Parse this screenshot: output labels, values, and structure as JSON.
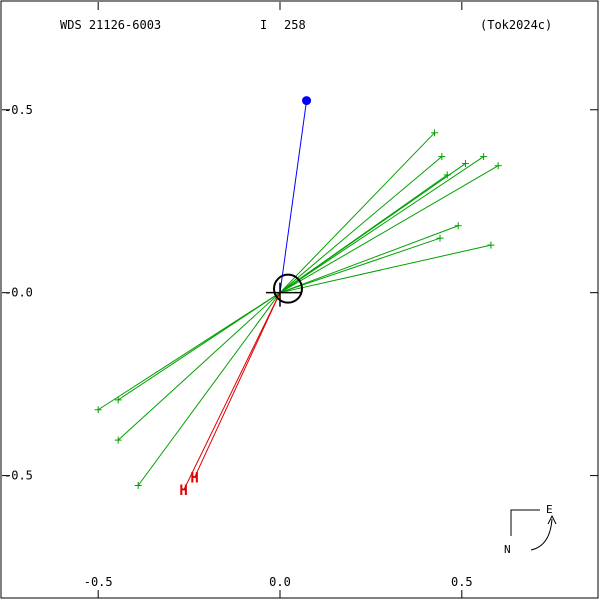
{
  "header": {
    "system": "WDS 21126-6003",
    "band": "I",
    "position_angle": "258",
    "reference": "(Tok2024c)"
  },
  "chart_data": {
    "type": "scatter",
    "title": "WDS 21126-6003",
    "xlim": [
      -0.77,
      0.88
    ],
    "ylim": [
      -0.84,
      0.8
    ],
    "x_ticks": [
      {
        "value": -0.5,
        "label": "-0.5"
      },
      {
        "value": 0.0,
        "label": "0.0"
      },
      {
        "value": 0.5,
        "label": "0.5"
      }
    ],
    "y_ticks": [
      {
        "value": 0.5,
        "label": "-0.5"
      },
      {
        "value": 0.0,
        "label": "-0.0"
      },
      {
        "value": -0.5,
        "label": "-0.5"
      }
    ],
    "primary": {
      "x": 0.0,
      "y": 0.0
    },
    "current_position": {
      "x": 0.073,
      "y": 0.525,
      "color": "#0000ff"
    },
    "measurements_green": [
      {
        "x": 0.425,
        "y": 0.437
      },
      {
        "x": 0.445,
        "y": 0.372
      },
      {
        "x": 0.51,
        "y": 0.353
      },
      {
        "x": 0.56,
        "y": 0.372
      },
      {
        "x": 0.6,
        "y": 0.347
      },
      {
        "x": 0.46,
        "y": 0.322
      },
      {
        "x": 0.49,
        "y": 0.183
      },
      {
        "x": 0.44,
        "y": 0.149
      },
      {
        "x": 0.58,
        "y": 0.13
      },
      {
        "x": -0.5,
        "y": -0.32
      },
      {
        "x": -0.445,
        "y": -0.293
      },
      {
        "x": -0.445,
        "y": -0.403
      },
      {
        "x": -0.39,
        "y": -0.527
      }
    ],
    "measurements_red": [
      {
        "x": -0.235,
        "y": -0.505,
        "label": "H"
      },
      {
        "x": -0.265,
        "y": -0.54,
        "label": "H"
      }
    ],
    "orientation": {
      "east_label": "E",
      "north_label": "N"
    },
    "colors": {
      "green": "#00a000",
      "red": "#e00000",
      "blue": "#0000ff",
      "black": "#000000"
    }
  }
}
